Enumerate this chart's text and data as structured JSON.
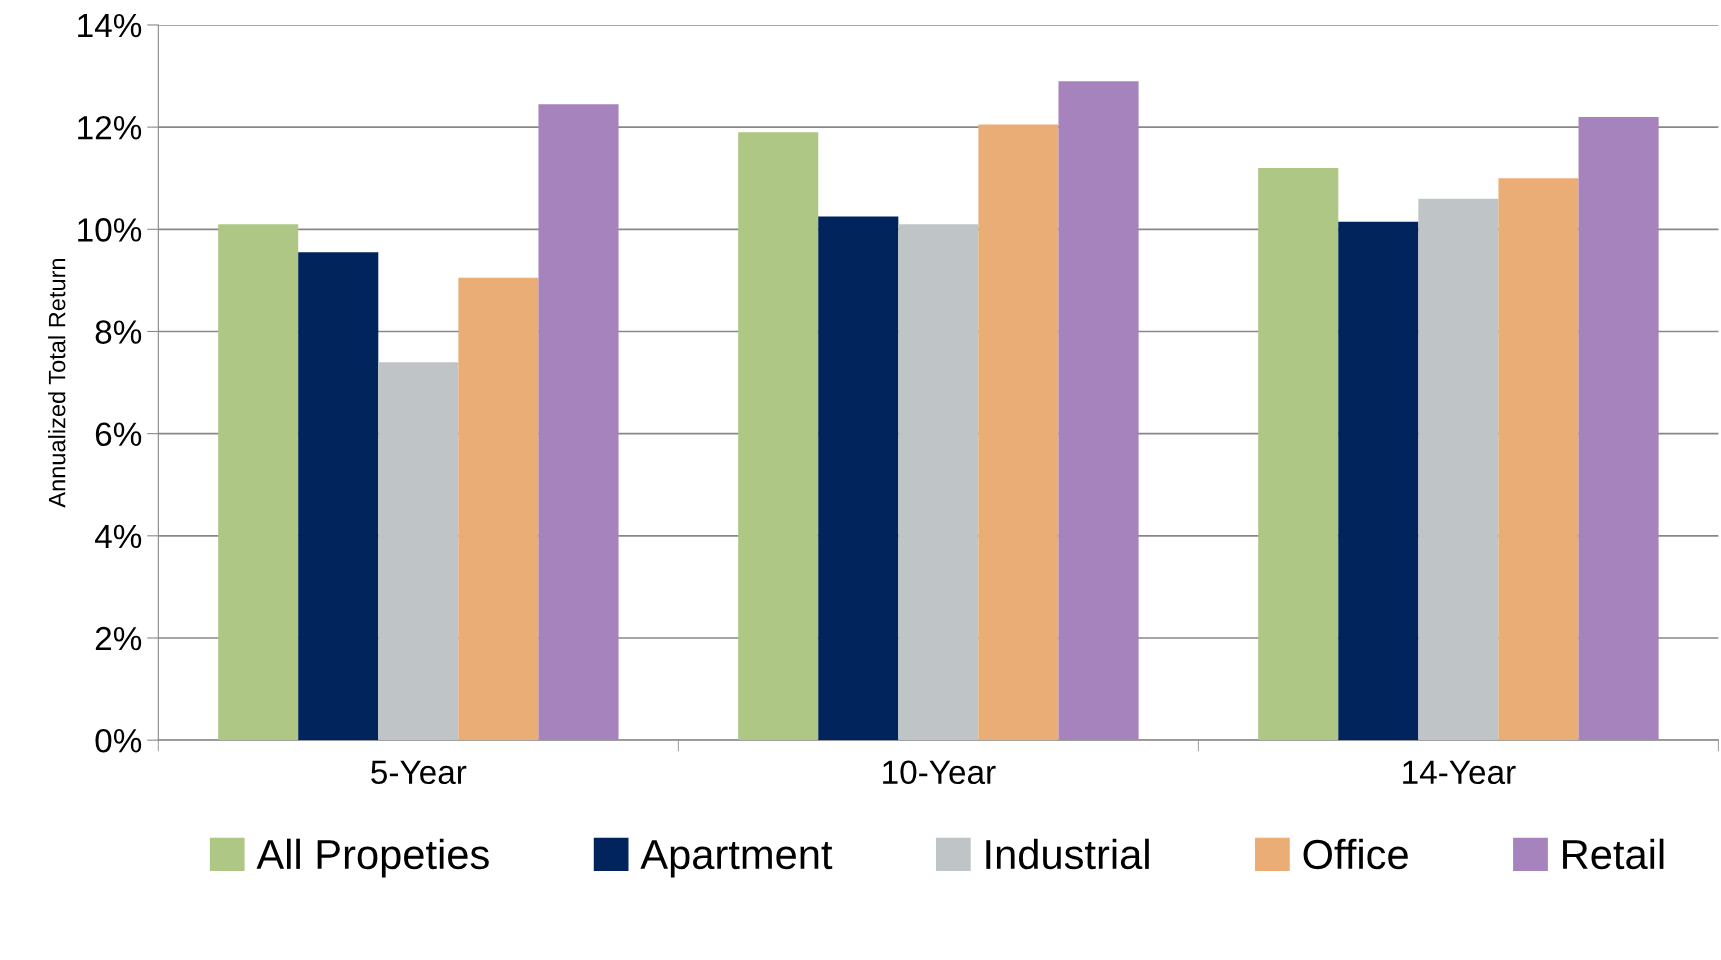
{
  "chart_data": {
    "type": "bar",
    "ylabel": "Annualized Total Return",
    "categories": [
      "5-Year",
      "10-Year",
      "14-Year"
    ],
    "series": [
      {
        "name": "All Propeties",
        "color": "#afc785",
        "values": [
          10.1,
          11.9,
          11.2
        ]
      },
      {
        "name": "Apartment",
        "color": "#00245b",
        "values": [
          9.55,
          10.25,
          10.15
        ]
      },
      {
        "name": "Industrial",
        "color": "#bfc4c6",
        "values": [
          7.4,
          10.1,
          10.6
        ]
      },
      {
        "name": "Office",
        "color": "#ebad76",
        "values": [
          9.05,
          12.05,
          11.0
        ]
      },
      {
        "name": "Retail",
        "color": "#a683bd",
        "values": [
          12.45,
          12.9,
          12.2
        ]
      }
    ],
    "ylim": [
      0,
      14
    ],
    "yticks": [
      {
        "value": 0,
        "label": "0%"
      },
      {
        "value": 2,
        "label": "2%"
      },
      {
        "value": 4,
        "label": "4%"
      },
      {
        "value": 6,
        "label": "6%"
      },
      {
        "value": 8,
        "label": "8%"
      },
      {
        "value": 10,
        "label": "10%"
      },
      {
        "value": 12,
        "label": "12%"
      },
      {
        "value": 14,
        "label": "14%"
      }
    ],
    "grid": "y",
    "legend": "bottom"
  }
}
